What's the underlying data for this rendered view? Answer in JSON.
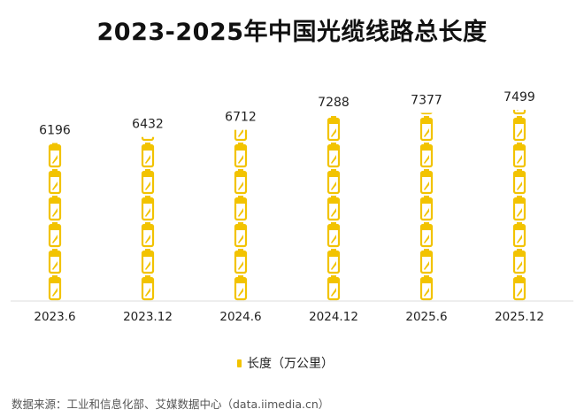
{
  "chart_data": {
    "type": "bar",
    "title": "2023-2025年中国光缆线路总长度",
    "categories": [
      "2023.6",
      "2023.12",
      "2024.6",
      "2024.12",
      "2025.6",
      "2025.12"
    ],
    "series": [
      {
        "name": "长度（万公里）",
        "values": [
          6196,
          6432,
          6712,
          7288,
          7377,
          7499
        ]
      }
    ],
    "ylim": [
      0,
      7499
    ],
    "grid": false,
    "legend": "bottom",
    "bar_style": "pictogram-battery-icons",
    "color": "#F2C300",
    "source": "数据来源：工业和信息化部、艾媒数据中心（data.iimedia.cn）"
  }
}
